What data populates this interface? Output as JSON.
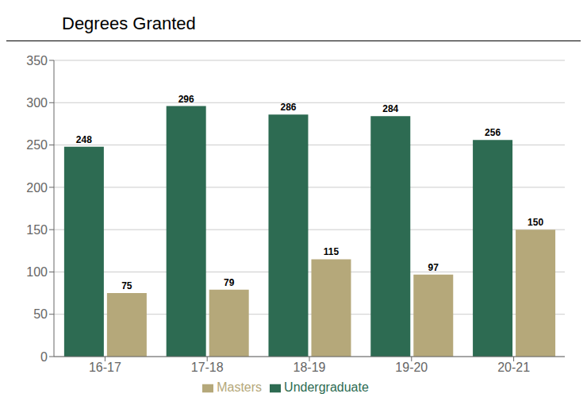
{
  "chart_data": {
    "type": "bar",
    "title": "Degrees Granted",
    "categories": [
      "16-17",
      "17-18",
      "18-19",
      "19-20",
      "20-21"
    ],
    "series": [
      {
        "name": "Undergraduate",
        "color": "#2d6b52",
        "values": [
          248,
          296,
          286,
          284,
          256
        ]
      },
      {
        "name": "Masters",
        "color": "#b5a87a",
        "values": [
          75,
          79,
          115,
          97,
          150
        ]
      }
    ],
    "ylim": [
      0,
      350
    ],
    "yticks": [
      0,
      50,
      100,
      150,
      200,
      250,
      300,
      350
    ],
    "grid": true,
    "legend": "bottom",
    "data_labels": true
  }
}
